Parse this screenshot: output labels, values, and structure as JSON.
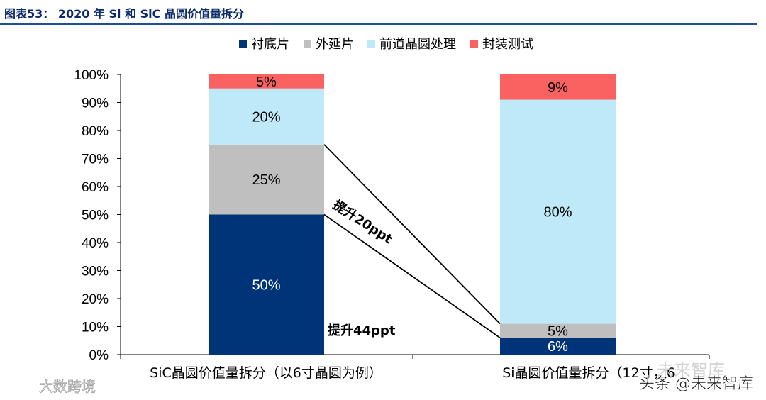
{
  "figure_title": "图表53： 2020 年 Si 和 SiC 晶圆价值量拆分",
  "chart_data": {
    "type": "bar",
    "stacked": true,
    "categories": [
      "SiC晶圆价值量拆分（以6寸晶圆为例）",
      "Si晶圆价值量拆分（12寸，6"
    ],
    "series": [
      {
        "name": "衬底片",
        "color": "#003478",
        "values": [
          50,
          6
        ],
        "labels": [
          "50%",
          "6%"
        ],
        "label_color": "#ffffff"
      },
      {
        "name": "外延片",
        "color": "#bfbfbf",
        "values": [
          25,
          5
        ],
        "labels": [
          "25%",
          "5%"
        ],
        "label_color": "#000000"
      },
      {
        "name": "前道晶圆处理",
        "color": "#bfe9f8",
        "values": [
          20,
          80
        ],
        "labels": [
          "20%",
          "80%"
        ],
        "label_color": "#000000"
      },
      {
        "name": "封装测试",
        "color": "#fa6262",
        "values": [
          5,
          9
        ],
        "labels": [
          "5%",
          "9%"
        ],
        "label_color": "#000000"
      }
    ],
    "ylim": [
      0,
      100
    ],
    "y_ticks": [
      "0%",
      "10%",
      "20%",
      "30%",
      "40%",
      "50%",
      "60%",
      "70%",
      "80%",
      "90%",
      "100%"
    ],
    "legend_position": "top",
    "annotations": [
      {
        "text": "提升20ppt",
        "from": [
          0,
          75
        ],
        "to": [
          1,
          11
        ]
      },
      {
        "text": "提升44ppt",
        "from": [
          0,
          50
        ],
        "to": [
          1,
          6
        ]
      }
    ]
  },
  "watermarks": {
    "bottom_left": "大数跨境",
    "bottom_right": "头条 @未来智库",
    "bottom_right_faded": "未来智库"
  }
}
